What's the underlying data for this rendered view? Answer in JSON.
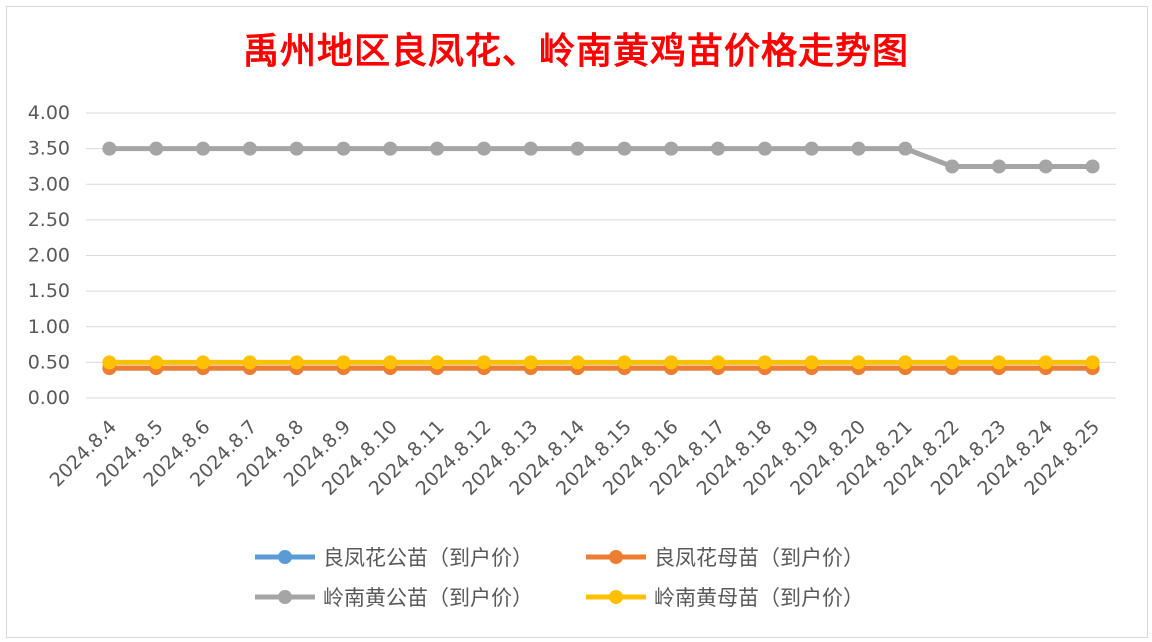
{
  "chart_data": {
    "type": "line",
    "title": "禹州地区良凤花、岭南黄鸡苗价格走势图",
    "xlabel": "",
    "ylabel": "",
    "ylim": [
      0,
      4
    ],
    "yticks": [
      "0.00",
      "0.50",
      "1.00",
      "1.50",
      "2.00",
      "2.50",
      "3.00",
      "3.50",
      "4.00"
    ],
    "grid": true,
    "legend_position": "bottom",
    "categories": [
      "2024.8.4",
      "2024.8.5",
      "2024.8.6",
      "2024.8.7",
      "2024.8.8",
      "2024.8.9",
      "2024.8.10",
      "2024.8.11",
      "2024.8.12",
      "2024.8.13",
      "2024.8.14",
      "2024.8.15",
      "2024.8.16",
      "2024.8.17",
      "2024.8.18",
      "2024.8.19",
      "2024.8.20",
      "2024.8.21",
      "2024.8.22",
      "2024.8.23",
      "2024.8.24",
      "2024.8.25"
    ],
    "series": [
      {
        "name": "良凤花公苗（到户价）",
        "color": "#5b9bd5",
        "values": [
          0.42,
          0.42,
          0.42,
          0.42,
          0.42,
          0.42,
          0.42,
          0.42,
          0.42,
          0.42,
          0.42,
          0.42,
          0.42,
          0.42,
          0.42,
          0.42,
          0.42,
          0.42,
          0.42,
          0.42,
          0.42,
          0.42
        ]
      },
      {
        "name": "良凤花母苗（到户价）",
        "color": "#ed7d31",
        "values": [
          0.42,
          0.42,
          0.42,
          0.42,
          0.42,
          0.42,
          0.42,
          0.42,
          0.42,
          0.42,
          0.42,
          0.42,
          0.42,
          0.42,
          0.42,
          0.42,
          0.42,
          0.42,
          0.42,
          0.42,
          0.42,
          0.42
        ]
      },
      {
        "name": "岭南黄公苗（到户价）",
        "color": "#a5a5a5",
        "values": [
          3.5,
          3.5,
          3.5,
          3.5,
          3.5,
          3.5,
          3.5,
          3.5,
          3.5,
          3.5,
          3.5,
          3.5,
          3.5,
          3.5,
          3.5,
          3.5,
          3.5,
          3.5,
          3.25,
          3.25,
          3.25,
          3.25
        ]
      },
      {
        "name": "岭南黄母苗（到户价）",
        "color": "#ffc000",
        "values": [
          0.5,
          0.5,
          0.5,
          0.5,
          0.5,
          0.5,
          0.5,
          0.5,
          0.5,
          0.5,
          0.5,
          0.5,
          0.5,
          0.5,
          0.5,
          0.5,
          0.5,
          0.5,
          0.5,
          0.5,
          0.5,
          0.5
        ]
      }
    ]
  }
}
